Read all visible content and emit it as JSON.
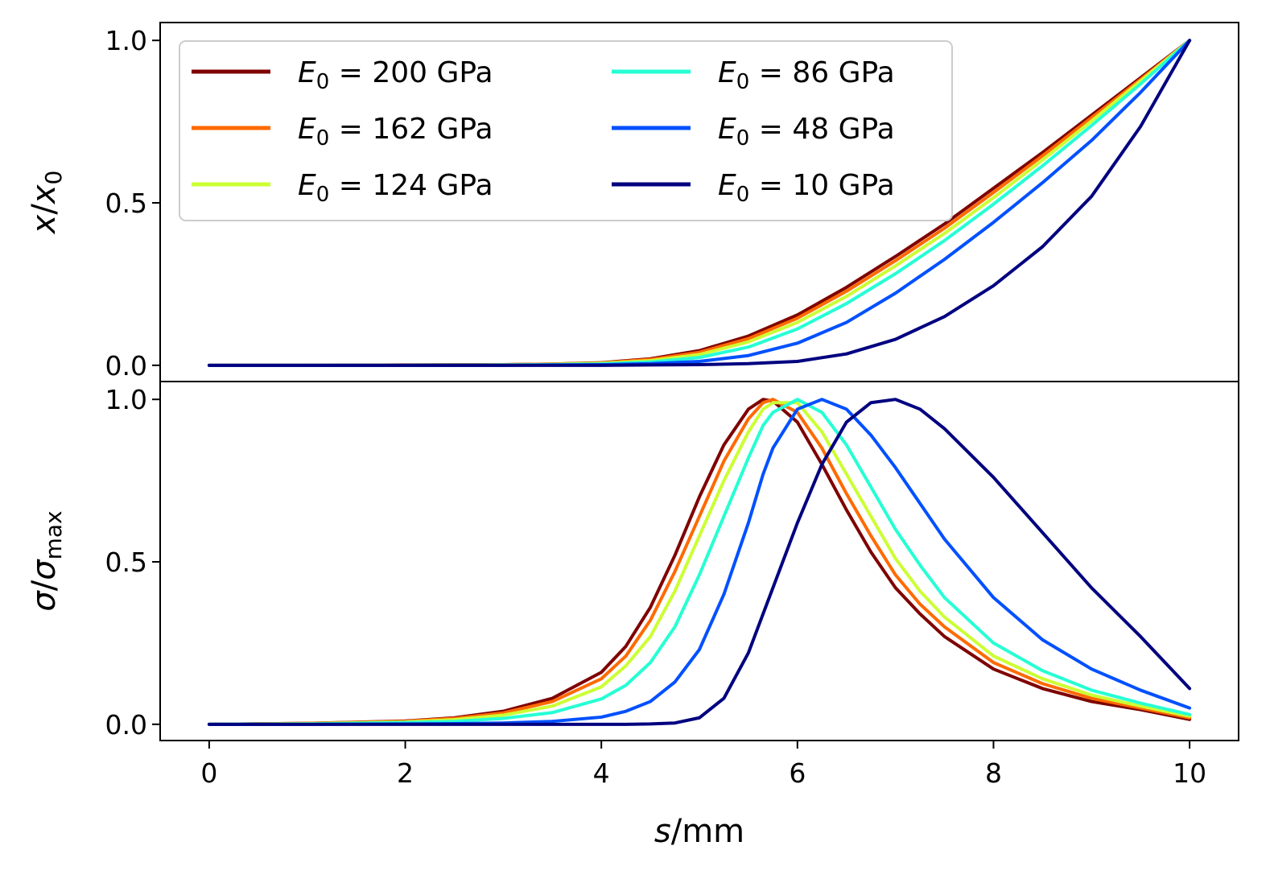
{
  "chart_data": [
    {
      "type": "line",
      "panel": "top",
      "ylabel": {
        "main": "x",
        "slash": "/",
        "sym": "x",
        "sub": "0"
      },
      "xlim": [
        -0.5,
        10.5
      ],
      "ylim": [
        -0.05,
        1.055
      ],
      "yticks": [
        0.0,
        0.5,
        1.0
      ],
      "ytick_labels": [
        "0.0",
        "0.5",
        "1.0"
      ],
      "legend_placement": "upper-left, two columns",
      "x": [
        0,
        1,
        2,
        3,
        3.5,
        4,
        4.5,
        5,
        5.5,
        6,
        6.5,
        7,
        7.5,
        8,
        8.5,
        9,
        9.5,
        10
      ],
      "series": [
        {
          "name": "200",
          "color": "#7f0000",
          "values": [
            0,
            0,
            0.001,
            0.002,
            0.004,
            0.008,
            0.02,
            0.045,
            0.09,
            0.155,
            0.24,
            0.335,
            0.435,
            0.545,
            0.655,
            0.77,
            0.885,
            1.0
          ]
        },
        {
          "name": "162",
          "color": "#ff6a00",
          "values": [
            0,
            0,
            0.001,
            0.002,
            0.004,
            0.007,
            0.018,
            0.04,
            0.082,
            0.145,
            0.228,
            0.322,
            0.422,
            0.532,
            0.645,
            0.762,
            0.88,
            1.0
          ]
        },
        {
          "name": "124",
          "color": "#ccff33",
          "values": [
            0,
            0,
            0,
            0.001,
            0.003,
            0.006,
            0.014,
            0.033,
            0.072,
            0.132,
            0.212,
            0.306,
            0.406,
            0.516,
            0.632,
            0.752,
            0.875,
            1.0
          ]
        },
        {
          "name": "86",
          "color": "#26ffd4",
          "values": [
            0,
            0,
            0,
            0.001,
            0.002,
            0.004,
            0.01,
            0.024,
            0.056,
            0.112,
            0.19,
            0.282,
            0.384,
            0.496,
            0.614,
            0.738,
            0.866,
            1.0
          ]
        },
        {
          "name": "48",
          "color": "#0050ff",
          "values": [
            0,
            0,
            0,
            0,
            0.001,
            0.002,
            0.005,
            0.012,
            0.03,
            0.068,
            0.132,
            0.222,
            0.326,
            0.44,
            0.562,
            0.692,
            0.84,
            1.0
          ]
        },
        {
          "name": "10",
          "color": "#000080",
          "values": [
            0,
            0,
            0,
            0,
            0,
            0,
            0.001,
            0.002,
            0.005,
            0.012,
            0.035,
            0.08,
            0.15,
            0.245,
            0.365,
            0.52,
            0.735,
            1.0
          ]
        }
      ]
    },
    {
      "type": "line",
      "panel": "bottom",
      "ylabel": {
        "main": "σ",
        "slash": "/",
        "sym": "σ",
        "sub": "max"
      },
      "xlabel": {
        "main": "s",
        "unit": "/mm"
      },
      "xlim": [
        -0.5,
        10.5
      ],
      "ylim": [
        -0.05,
        1.055
      ],
      "xticks": [
        0,
        2,
        4,
        6,
        8,
        10
      ],
      "xtick_labels": [
        "0",
        "2",
        "4",
        "6",
        "8",
        "10"
      ],
      "yticks": [
        0.0,
        0.5,
        1.0
      ],
      "ytick_labels": [
        "0.0",
        "0.5",
        "1.0"
      ],
      "x": [
        0,
        1,
        2,
        2.5,
        3,
        3.5,
        4,
        4.25,
        4.5,
        4.75,
        5,
        5.25,
        5.5,
        5.65,
        5.75,
        6,
        6.25,
        6.5,
        6.75,
        7,
        7.25,
        7.5,
        8,
        8.5,
        9,
        9.5,
        10
      ],
      "series": [
        {
          "name": "200",
          "color": "#7f0000",
          "values": [
            0,
            0.003,
            0.01,
            0.02,
            0.04,
            0.08,
            0.16,
            0.24,
            0.36,
            0.52,
            0.7,
            0.86,
            0.97,
            1.0,
            0.995,
            0.93,
            0.8,
            0.66,
            0.53,
            0.42,
            0.34,
            0.27,
            0.17,
            0.11,
            0.07,
            0.045,
            0.015
          ]
        },
        {
          "name": "162",
          "color": "#ff6a00",
          "values": [
            0,
            0.003,
            0.009,
            0.018,
            0.035,
            0.07,
            0.14,
            0.21,
            0.32,
            0.47,
            0.64,
            0.81,
            0.94,
            0.99,
            1.0,
            0.96,
            0.85,
            0.71,
            0.58,
            0.46,
            0.37,
            0.3,
            0.19,
            0.125,
            0.08,
            0.05,
            0.02
          ]
        },
        {
          "name": "124",
          "color": "#ccff33",
          "values": [
            0,
            0.002,
            0.007,
            0.014,
            0.028,
            0.056,
            0.115,
            0.18,
            0.27,
            0.41,
            0.58,
            0.75,
            0.9,
            0.97,
            0.99,
            0.99,
            0.9,
            0.77,
            0.64,
            0.51,
            0.41,
            0.33,
            0.21,
            0.14,
            0.09,
            0.056,
            0.025
          ]
        },
        {
          "name": "86",
          "color": "#26ffd4",
          "values": [
            0,
            0.001,
            0.005,
            0.009,
            0.018,
            0.036,
            0.078,
            0.12,
            0.19,
            0.3,
            0.46,
            0.64,
            0.82,
            0.92,
            0.96,
            1.0,
            0.96,
            0.86,
            0.73,
            0.6,
            0.49,
            0.39,
            0.25,
            0.165,
            0.105,
            0.065,
            0.03
          ]
        },
        {
          "name": "48",
          "color": "#0050ff",
          "values": [
            0,
            0,
            0.001,
            0.002,
            0.004,
            0.009,
            0.022,
            0.04,
            0.07,
            0.13,
            0.23,
            0.4,
            0.62,
            0.77,
            0.85,
            0.97,
            1.0,
            0.97,
            0.89,
            0.79,
            0.68,
            0.57,
            0.39,
            0.26,
            0.17,
            0.105,
            0.05
          ]
        },
        {
          "name": "10",
          "color": "#000080",
          "values": [
            0,
            0,
            0,
            0,
            0,
            0,
            0,
            0,
            0.001,
            0.004,
            0.02,
            0.08,
            0.22,
            0.34,
            0.42,
            0.62,
            0.8,
            0.93,
            0.99,
            1.0,
            0.97,
            0.91,
            0.76,
            0.59,
            0.42,
            0.27,
            0.11
          ]
        }
      ]
    }
  ],
  "legend": {
    "symbol": "E",
    "sub": "0",
    "unit": "GPa"
  }
}
